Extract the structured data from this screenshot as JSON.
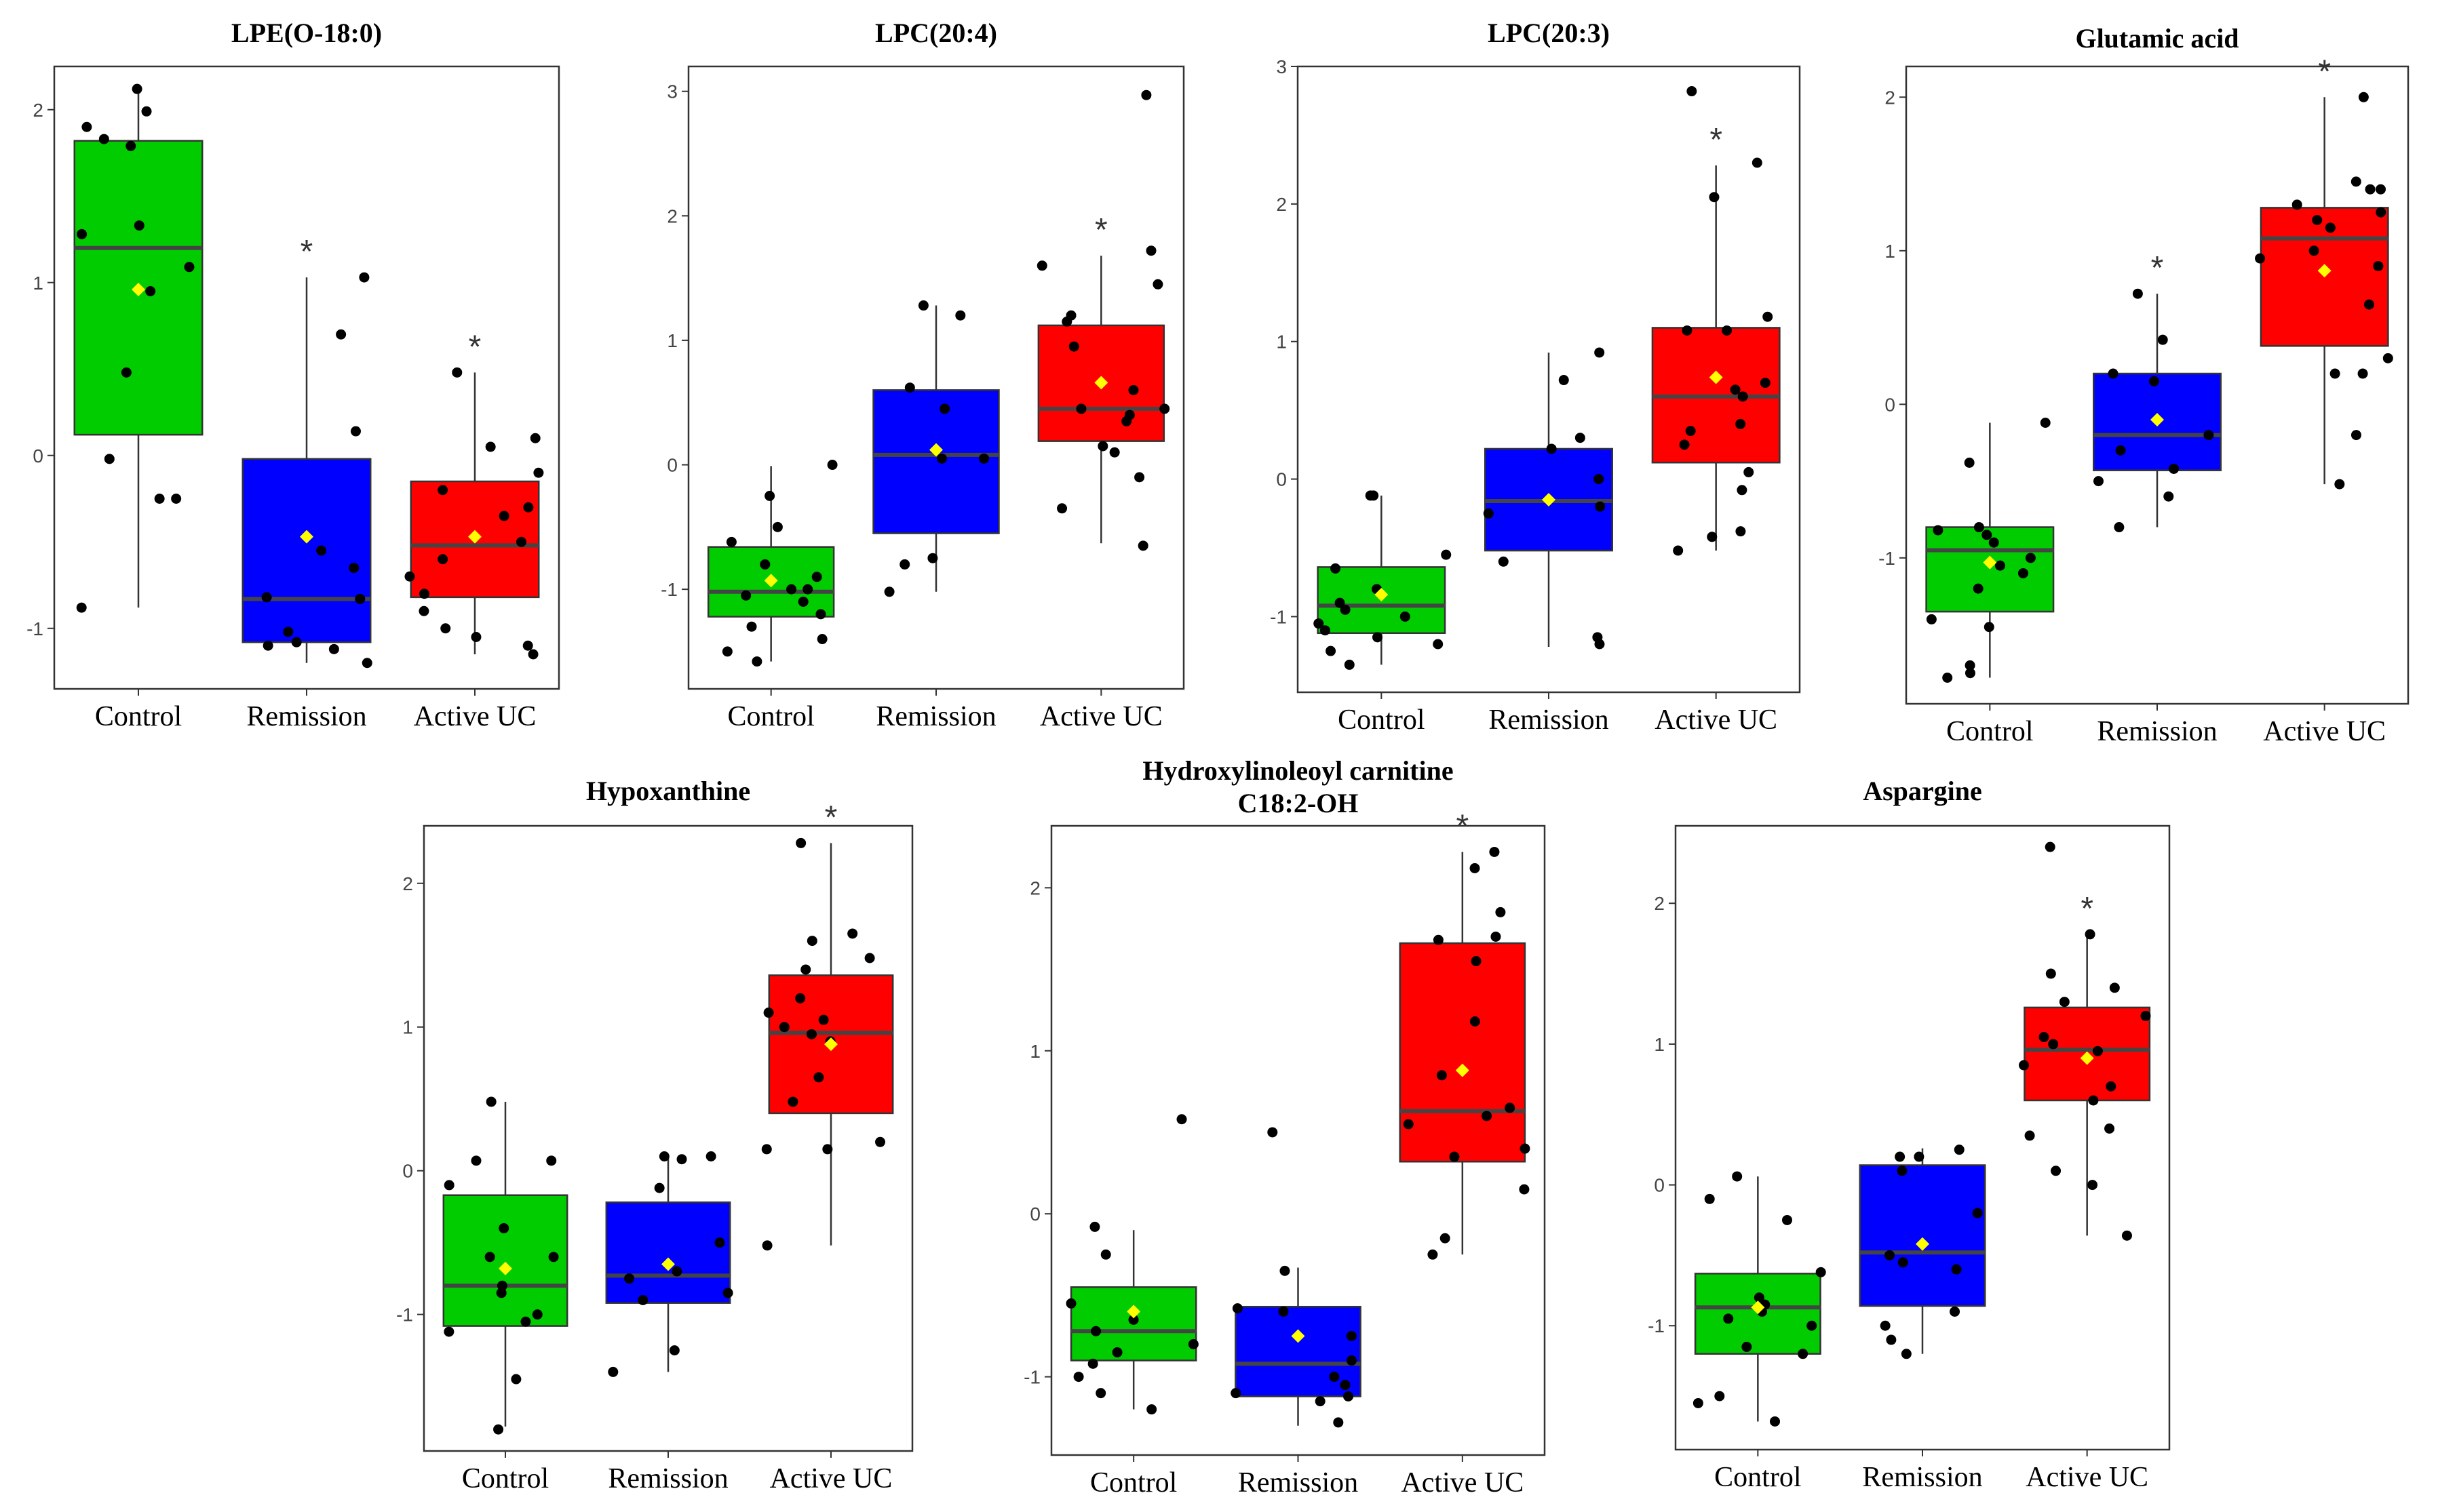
{
  "figure_title": "",
  "chart_data": [
    {
      "type": "box",
      "title": "LPE(O-18:0)",
      "categories": [
        "Control",
        "Remission",
        "Active UC"
      ],
      "colors": [
        "#00cc00",
        "#0000ff",
        "#ff0000"
      ],
      "ylim": [
        -1.35,
        2.25
      ],
      "yticks": [
        -1,
        0,
        1,
        2
      ],
      "boxes": [
        {
          "q1": 0.12,
          "median": 1.2,
          "q3": 1.82,
          "lower": -0.88,
          "upper": 2.13,
          "mean": 0.96
        },
        {
          "q1": -1.08,
          "median": -0.83,
          "q3": -0.02,
          "lower": -1.2,
          "upper": 1.03,
          "mean": -0.47
        },
        {
          "q1": -0.82,
          "median": -0.52,
          "q3": -0.15,
          "lower": -1.15,
          "upper": 0.48,
          "mean": -0.47
        }
      ],
      "points": [
        [
          2.12,
          1.99,
          1.9,
          1.83,
          1.79,
          1.33,
          1.28,
          1.09,
          0.95,
          0.48,
          -0.02,
          -0.25,
          -0.25,
          -0.88
        ],
        [
          1.03,
          0.7,
          0.14,
          -0.55,
          -0.65,
          -0.82,
          -0.83,
          -1.02,
          -1.08,
          -1.1,
          -1.12,
          -1.2
        ],
        [
          0.48,
          0.1,
          0.05,
          -0.1,
          -0.2,
          -0.3,
          -0.35,
          -0.5,
          -0.6,
          -0.7,
          -0.8,
          -0.9,
          -1.0,
          -1.05,
          -1.1,
          -1.15
        ]
      ],
      "significance": [
        "",
        "*",
        "*"
      ]
    },
    {
      "type": "box",
      "title": "LPC(20:4)",
      "categories": [
        "Control",
        "Remission",
        "Active UC"
      ],
      "colors": [
        "#00cc00",
        "#0000ff",
        "#ff0000"
      ],
      "ylim": [
        -1.8,
        3.2
      ],
      "yticks": [
        -1,
        0,
        1,
        2,
        3
      ],
      "boxes": [
        {
          "q1": -1.22,
          "median": -1.02,
          "q3": -0.66,
          "lower": -1.58,
          "upper": -0.01,
          "mean": -0.93
        },
        {
          "q1": -0.55,
          "median": 0.08,
          "q3": 0.6,
          "lower": -1.02,
          "upper": 1.28,
          "mean": 0.12
        },
        {
          "q1": 0.19,
          "median": 0.45,
          "q3": 1.12,
          "lower": -0.63,
          "upper": 1.68,
          "mean": 0.66
        }
      ],
      "points": [
        [
          0.0,
          -0.25,
          -0.5,
          -0.62,
          -0.8,
          -0.9,
          -1.0,
          -1.0,
          -1.05,
          -1.1,
          -1.2,
          -1.3,
          -1.4,
          -1.5,
          -1.58
        ],
        [
          1.28,
          1.2,
          0.62,
          0.45,
          0.05,
          0.05,
          -0.75,
          -0.8,
          -1.02
        ],
        [
          2.97,
          1.72,
          1.6,
          1.45,
          1.2,
          1.15,
          0.95,
          0.6,
          0.45,
          0.45,
          0.4,
          0.35,
          0.15,
          0.1,
          -0.1,
          -0.35,
          -0.65
        ]
      ],
      "significance": [
        "",
        "",
        "*"
      ]
    },
    {
      "type": "box",
      "title": "LPC(20:3)",
      "categories": [
        "Control",
        "Remission",
        "Active UC"
      ],
      "colors": [
        "#00cc00",
        "#0000ff",
        "#ff0000"
      ],
      "ylim": [
        -1.55,
        3.0
      ],
      "yticks": [
        -1,
        0,
        1,
        2,
        3
      ],
      "boxes": [
        {
          "q1": -1.12,
          "median": -0.92,
          "q3": -0.64,
          "lower": -1.35,
          "upper": -0.12,
          "mean": -0.84
        },
        {
          "q1": -0.52,
          "median": -0.16,
          "q3": 0.22,
          "lower": -1.22,
          "upper": 0.92,
          "mean": -0.15
        },
        {
          "q1": 0.12,
          "median": 0.6,
          "q3": 1.1,
          "lower": -0.52,
          "upper": 2.28,
          "mean": 0.74
        }
      ],
      "points": [
        [
          -0.12,
          -0.12,
          -0.55,
          -0.65,
          -0.8,
          -0.9,
          -0.95,
          -1.0,
          -1.05,
          -1.1,
          -1.15,
          -1.2,
          -1.25,
          -1.35
        ],
        [
          0.92,
          0.72,
          0.3,
          0.22,
          0.0,
          -0.2,
          -0.25,
          -0.6,
          -1.15,
          -1.2
        ],
        [
          2.82,
          2.3,
          2.05,
          1.18,
          1.08,
          1.08,
          0.7,
          0.65,
          0.6,
          0.4,
          0.35,
          0.25,
          0.05,
          -0.08,
          -0.38,
          -0.42,
          -0.52
        ]
      ],
      "significance": [
        "",
        "",
        "*"
      ]
    },
    {
      "type": "box",
      "title": "Glutamic acid",
      "categories": [
        "Control",
        "Remission",
        "Active UC"
      ],
      "colors": [
        "#00cc00",
        "#0000ff",
        "#ff0000"
      ],
      "ylim": [
        -1.95,
        2.2
      ],
      "yticks": [
        -1,
        0,
        1,
        2
      ],
      "boxes": [
        {
          "q1": -1.35,
          "median": -0.95,
          "q3": -0.8,
          "lower": -1.78,
          "upper": -0.12,
          "mean": -1.03
        },
        {
          "q1": -0.43,
          "median": -0.2,
          "q3": 0.2,
          "lower": -0.8,
          "upper": 0.72,
          "mean": -0.1
        },
        {
          "q1": 0.38,
          "median": 1.08,
          "q3": 1.28,
          "lower": -0.52,
          "upper": 2.0,
          "mean": 0.87
        }
      ],
      "points": [
        [
          -0.12,
          -0.38,
          -0.8,
          -0.82,
          -0.85,
          -0.9,
          -1.0,
          -1.05,
          -1.1,
          -1.2,
          -1.4,
          -1.45,
          -1.7,
          -1.75,
          -1.78
        ],
        [
          0.72,
          0.42,
          0.2,
          0.15,
          -0.2,
          -0.3,
          -0.42,
          -0.5,
          -0.6,
          -0.8
        ],
        [
          2.0,
          1.45,
          1.4,
          1.4,
          1.3,
          1.25,
          1.2,
          1.15,
          1.0,
          0.95,
          0.9,
          0.65,
          0.3,
          0.2,
          0.2,
          -0.2,
          -0.52
        ]
      ],
      "significance": [
        "",
        "*",
        "*"
      ]
    },
    {
      "type": "box",
      "title": "Hypoxanthine",
      "categories": [
        "Control",
        "Remission",
        "Active UC"
      ],
      "colors": [
        "#00cc00",
        "#0000ff",
        "#ff0000"
      ],
      "ylim": [
        -1.95,
        2.4
      ],
      "yticks": [
        -1,
        0,
        1,
        2
      ],
      "boxes": [
        {
          "q1": -1.08,
          "median": -0.8,
          "q3": -0.17,
          "lower": -1.78,
          "upper": 0.48,
          "mean": -0.68
        },
        {
          "q1": -0.92,
          "median": -0.73,
          "q3": -0.22,
          "lower": -1.4,
          "upper": 0.1,
          "mean": -0.65
        },
        {
          "q1": 0.4,
          "median": 0.96,
          "q3": 1.36,
          "lower": -0.52,
          "upper": 2.28,
          "mean": 0.88
        }
      ],
      "points": [
        [
          0.48,
          0.07,
          0.07,
          -0.1,
          -0.4,
          -0.6,
          -0.6,
          -0.8,
          -0.85,
          -1.0,
          -1.05,
          -1.12,
          -1.45,
          -1.8
        ],
        [
          0.1,
          0.1,
          0.08,
          -0.12,
          -0.5,
          -0.7,
          -0.75,
          -0.85,
          -0.9,
          -1.25,
          -1.4
        ],
        [
          2.28,
          1.65,
          1.6,
          1.48,
          1.4,
          1.2,
          1.1,
          1.05,
          1.0,
          0.95,
          0.9,
          0.65,
          0.48,
          0.2,
          0.15,
          0.15,
          -0.52
        ]
      ],
      "significance": [
        "",
        "",
        "*"
      ]
    },
    {
      "type": "box",
      "title": "Hydroxylinoleoyl carnitine",
      "title_line2": "C18:2-OH",
      "categories": [
        "Control",
        "Remission",
        "Active UC"
      ],
      "colors": [
        "#00cc00",
        "#0000ff",
        "#ff0000"
      ],
      "ylim": [
        -1.48,
        2.38
      ],
      "yticks": [
        -1,
        0,
        1,
        2
      ],
      "boxes": [
        {
          "q1": -0.9,
          "median": -0.72,
          "q3": -0.45,
          "lower": -1.2,
          "upper": -0.1,
          "mean": -0.6
        },
        {
          "q1": -1.12,
          "median": -0.92,
          "q3": -0.57,
          "lower": -1.3,
          "upper": -0.33,
          "mean": -0.75
        },
        {
          "q1": 0.32,
          "median": 0.63,
          "q3": 1.66,
          "lower": -0.25,
          "upper": 2.22,
          "mean": 0.88
        }
      ],
      "points": [
        [
          0.58,
          -0.08,
          -0.25,
          -0.55,
          -0.65,
          -0.72,
          -0.8,
          -0.85,
          -0.92,
          -1.0,
          -1.1,
          -1.2
        ],
        [
          0.5,
          -0.35,
          -0.58,
          -0.6,
          -0.75,
          -0.9,
          -1.0,
          -1.05,
          -1.1,
          -1.12,
          -1.15,
          -1.28
        ],
        [
          2.22,
          2.12,
          1.85,
          1.7,
          1.68,
          1.55,
          1.18,
          0.85,
          0.65,
          0.6,
          0.55,
          0.4,
          0.35,
          0.15,
          -0.15,
          -0.25
        ]
      ],
      "significance": [
        "",
        "",
        "*"
      ]
    },
    {
      "type": "box",
      "title": "Aspargine",
      "categories": [
        "Control",
        "Remission",
        "Active UC"
      ],
      "colors": [
        "#00cc00",
        "#0000ff",
        "#ff0000"
      ],
      "ylim": [
        -1.88,
        2.55
      ],
      "yticks": [
        -1,
        0,
        1,
        2
      ],
      "boxes": [
        {
          "q1": -1.2,
          "median": -0.87,
          "q3": -0.63,
          "lower": -1.68,
          "upper": 0.06,
          "mean": -0.87
        },
        {
          "q1": -0.86,
          "median": -0.48,
          "q3": 0.14,
          "lower": -1.2,
          "upper": 0.26,
          "mean": -0.42
        },
        {
          "q1": 0.6,
          "median": 0.96,
          "q3": 1.26,
          "lower": -0.36,
          "upper": 1.78,
          "mean": 0.9
        }
      ],
      "points": [
        [
          0.06,
          -0.1,
          -0.25,
          -0.62,
          -0.8,
          -0.85,
          -0.9,
          -0.95,
          -1.0,
          -1.15,
          -1.2,
          -1.5,
          -1.55,
          -1.68
        ],
        [
          0.25,
          0.2,
          0.2,
          0.1,
          -0.2,
          -0.5,
          -0.55,
          -0.6,
          -0.9,
          -1.0,
          -1.1,
          -1.2
        ],
        [
          2.4,
          1.78,
          1.5,
          1.4,
          1.3,
          1.2,
          1.05,
          1.0,
          0.95,
          0.85,
          0.7,
          0.6,
          0.4,
          0.35,
          0.1,
          0.0,
          -0.36
        ]
      ],
      "significance": [
        "",
        "",
        "*"
      ]
    }
  ]
}
